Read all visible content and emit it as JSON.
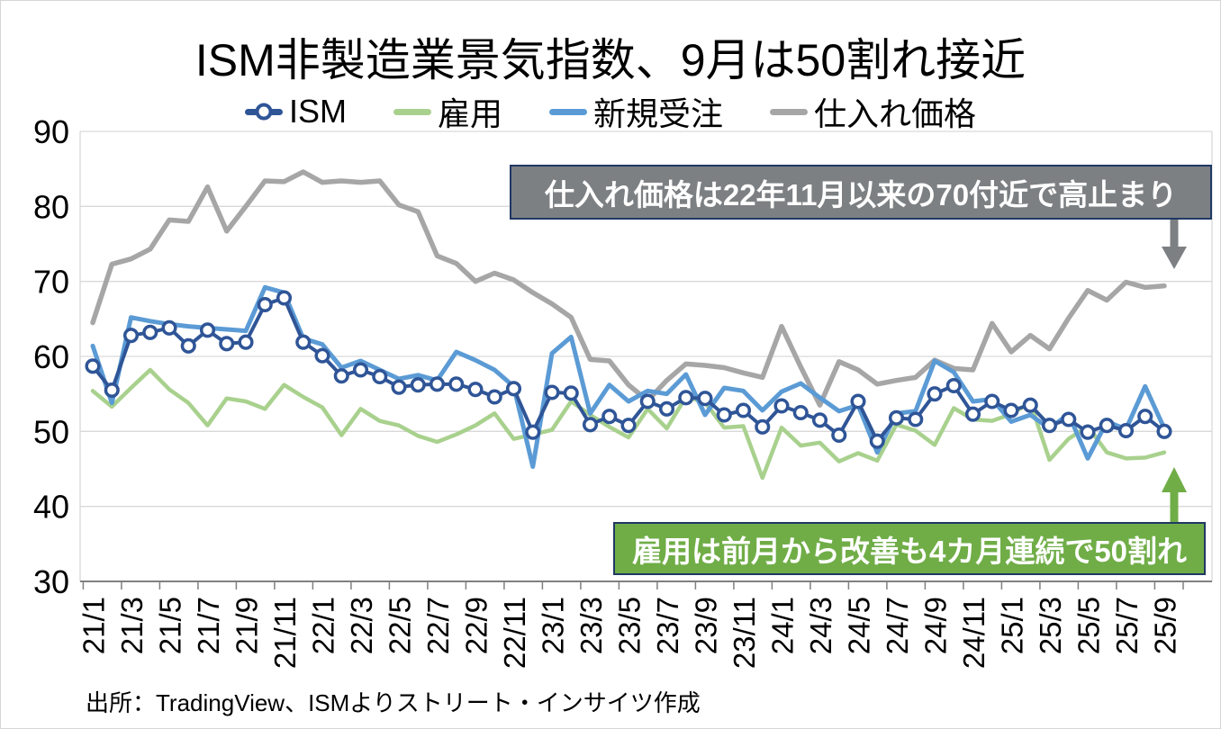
{
  "title": "ISM非製造業景気指数、9月は50割れ接近",
  "legend": {
    "items": [
      {
        "label": "ISM",
        "color": "#2F5597",
        "marker": "line-circle"
      },
      {
        "label": "雇用",
        "color": "#A9D18E",
        "marker": "line"
      },
      {
        "label": "新規受注",
        "color": "#5B9BD5",
        "marker": "line"
      },
      {
        "label": "仕入れ価格",
        "color": "#A6A6A6",
        "marker": "line"
      }
    ]
  },
  "annotations": {
    "prices": {
      "text": "仕入れ価格は22年11月以来の70付近で高止まり",
      "box_color": "#7D8083",
      "border_color": "#1F3864",
      "arrow_color": "#7D8083",
      "arrow_direction": "down"
    },
    "employment": {
      "text": "雇用は前月から改善も4カ月連続で50割れ",
      "box_color": "#70AD47",
      "border_color": "#1F3864",
      "arrow_color": "#70AD47",
      "arrow_direction": "up"
    }
  },
  "source": "出所：TradingView、ISMよりストリート・インサイツ作成",
  "colors": {
    "grid": "#D9D9D9",
    "axis": "#808080",
    "text": "#000000",
    "annotation_text": "#FFFFFF"
  },
  "chart_data": {
    "type": "line",
    "title": "ISM非製造業景気指数、9月は50割れ接近",
    "x_tick_labels": [
      "21/1",
      "21/3",
      "21/5",
      "21/7",
      "21/9",
      "21/11",
      "22/1",
      "22/3",
      "22/5",
      "22/7",
      "22/9",
      "22/11",
      "23/1",
      "23/3",
      "23/5",
      "23/7",
      "23/9",
      "23/11",
      "24/1",
      "24/3",
      "24/5",
      "24/7",
      "24/9",
      "24/11",
      "25/1",
      "25/3",
      "25/5",
      "25/7",
      "25/9"
    ],
    "categories": [
      "21/1",
      "21/2",
      "21/3",
      "21/4",
      "21/5",
      "21/6",
      "21/7",
      "21/8",
      "21/9",
      "21/10",
      "21/11",
      "21/12",
      "22/1",
      "22/2",
      "22/3",
      "22/4",
      "22/5",
      "22/6",
      "22/7",
      "22/8",
      "22/9",
      "22/10",
      "22/11",
      "22/12",
      "23/1",
      "23/2",
      "23/3",
      "23/4",
      "23/5",
      "23/6",
      "23/7",
      "23/8",
      "23/9",
      "23/10",
      "23/11",
      "23/12",
      "24/1",
      "24/2",
      "24/3",
      "24/4",
      "24/5",
      "24/6",
      "24/7",
      "24/8",
      "24/9",
      "24/10",
      "24/11",
      "24/12",
      "25/1",
      "25/2",
      "25/3",
      "25/4",
      "25/5",
      "25/6",
      "25/7",
      "25/8",
      "25/9"
    ],
    "y_axis": {
      "min": 30,
      "max": 90,
      "tick_interval": 10,
      "ticks": [
        30,
        40,
        50,
        60,
        70,
        80,
        90
      ]
    },
    "grid": "horizontal",
    "legend_position": "top",
    "series": [
      {
        "name": "ISM",
        "color": "#2F5597",
        "width": 4,
        "markers": true,
        "values": [
          58.7,
          55.5,
          62.8,
          63.2,
          63.8,
          61.4,
          63.5,
          61.7,
          61.9,
          66.9,
          67.8,
          61.9,
          60.1,
          57.4,
          58.2,
          57.3,
          55.9,
          56.2,
          56.3,
          56.3,
          55.6,
          54.6,
          55.7,
          49.9,
          55.2,
          55.1,
          50.9,
          52.0,
          50.8,
          54.0,
          53.0,
          54.5,
          54.4,
          52.2,
          52.8,
          50.6,
          53.4,
          52.5,
          51.5,
          49.5,
          54.0,
          48.7,
          51.8,
          51.6,
          55.0,
          56.1,
          52.3,
          54.0,
          52.8,
          53.5,
          50.8,
          51.6,
          49.9,
          50.8,
          50.1,
          52.0,
          50.0
        ]
      },
      {
        "name": "雇用",
        "color": "#A9D18E",
        "width": 4.5,
        "markers": false,
        "values": [
          55.4,
          53.3,
          55.8,
          58.2,
          55.6,
          53.8,
          50.8,
          54.4,
          54.0,
          53.0,
          56.2,
          54.6,
          53.2,
          49.5,
          53.0,
          51.4,
          50.8,
          49.4,
          48.6,
          49.6,
          50.8,
          52.4,
          49.0,
          49.6,
          50.2,
          54.0,
          52.2,
          50.6,
          49.2,
          53.0,
          50.4,
          54.6,
          53.9,
          50.5,
          50.7,
          43.8,
          50.5,
          48.1,
          48.5,
          46.0,
          47.1,
          46.1,
          50.9,
          50.1,
          48.2,
          53.1,
          51.6,
          51.4,
          52.3,
          53.9,
          46.2,
          49.0,
          50.7,
          47.2,
          46.4,
          46.5,
          47.2
        ]
      },
      {
        "name": "新規受注",
        "color": "#5B9BD5",
        "width": 5,
        "markers": false,
        "values": [
          61.4,
          53.8,
          65.2,
          64.7,
          64.3,
          64.0,
          63.8,
          63.6,
          63.4,
          69.2,
          68.5,
          62.4,
          61.6,
          58.5,
          59.4,
          58.2,
          57.0,
          57.5,
          56.8,
          60.6,
          59.5,
          58.2,
          56.0,
          45.3,
          60.4,
          62.6,
          52.4,
          56.2,
          54.0,
          55.4,
          55.0,
          57.6,
          52.2,
          55.8,
          55.4,
          52.8,
          55.3,
          56.4,
          54.5,
          52.7,
          53.5,
          47.2,
          52.4,
          52.7,
          59.4,
          57.9,
          54.0,
          54.3,
          51.3,
          52.2,
          50.4,
          52.3,
          46.4,
          51.3,
          50.3,
          56.0,
          50.4
        ]
      },
      {
        "name": "仕入れ価格",
        "color": "#A6A6A6",
        "width": 5.5,
        "markers": false,
        "values": [
          64.5,
          72.3,
          73.0,
          74.3,
          78.2,
          78.0,
          82.6,
          76.7,
          80.0,
          83.4,
          83.3,
          84.6,
          83.2,
          83.4,
          83.2,
          83.4,
          80.2,
          79.3,
          73.4,
          72.4,
          70.0,
          71.1,
          70.2,
          68.5,
          67.0,
          65.2,
          59.6,
          59.4,
          56.2,
          54.1,
          56.8,
          59.0,
          58.8,
          58.5,
          57.8,
          57.2,
          64.0,
          58.6,
          53.5,
          59.3,
          58.2,
          56.3,
          56.8,
          57.2,
          59.5,
          58.4,
          58.2,
          64.4,
          60.6,
          62.8,
          61.0,
          65.1,
          68.8,
          67.5,
          69.9,
          69.2,
          69.4
        ]
      }
    ]
  }
}
